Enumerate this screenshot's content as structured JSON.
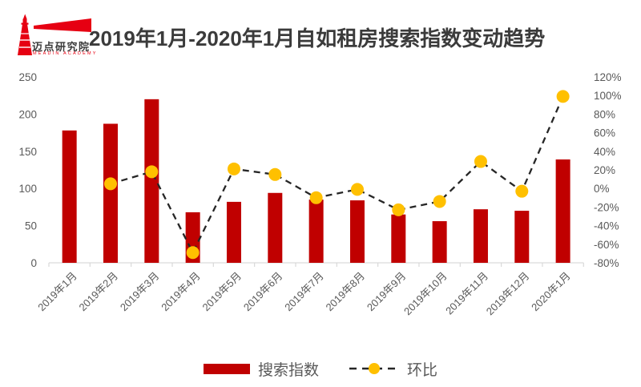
{
  "header": {
    "logo": {
      "name": "迈点研究院",
      "subtext": "MEADIN ACADEMY",
      "color": "#e60012"
    },
    "title": "2019年1月-2020年1月自如租房搜索指数变动趋势"
  },
  "chart_data": {
    "type": "bar",
    "subtype": "bar+line-combo",
    "title": "2019年1月-2020年1月自如租房搜索指数变动趋势",
    "categories": [
      "2019年1月",
      "2019年2月",
      "2019年3月",
      "2019年4月",
      "2019年5月",
      "2019年6月",
      "2019年7月",
      "2019年8月",
      "2019年9月",
      "2019年10月",
      "2019年11月",
      "2019年12月",
      "2020年1月"
    ],
    "series": [
      {
        "name": "搜索指数",
        "type": "bar",
        "axis": "left",
        "color": "#c00000",
        "values": [
          178,
          187,
          220,
          68,
          82,
          94,
          85,
          84,
          65,
          56,
          72,
          70,
          139
        ]
      },
      {
        "name": "环比",
        "type": "line",
        "axis": "right",
        "style": "dashed",
        "marker_color": "#ffc000",
        "line_color": "#262626",
        "values_pct": [
          null,
          5,
          18,
          -69,
          21,
          15,
          -10,
          -1,
          -23,
          -14,
          29,
          -3,
          99
        ]
      }
    ],
    "left_axis": {
      "min": 0,
      "max": 250,
      "step": 50,
      "ticks": [
        "0",
        "50",
        "100",
        "150",
        "200",
        "250"
      ]
    },
    "right_axis": {
      "min": -80,
      "max": 120,
      "step": 20,
      "ticks": [
        "120%",
        "100%",
        "80%",
        "60%",
        "40%",
        "20%",
        "0%",
        "-20%",
        "-40%",
        "-60%",
        "-80%"
      ]
    },
    "grid": false,
    "legend_position": "bottom",
    "axis_line_color": "#d9d9d9",
    "tick_text_color": "#595959"
  }
}
